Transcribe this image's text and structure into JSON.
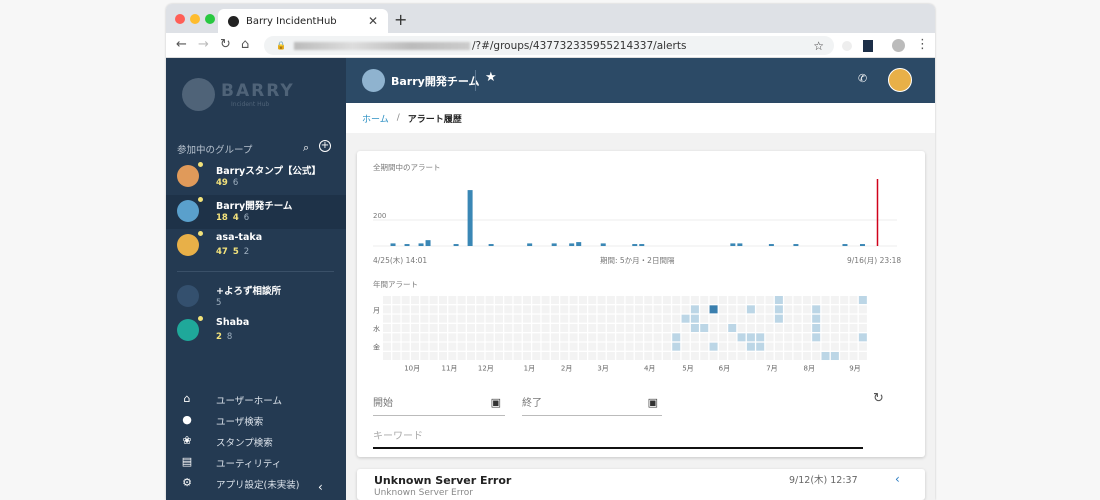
{
  "browser": {
    "tab_title": "Barry IncidentHub",
    "url": "/?#/groups/437732335955214337/alerts"
  },
  "sidebar": {
    "logo": {
      "name": "BARRY",
      "sub": "Incident Hub"
    },
    "groups_title": "参加中のグループ",
    "groups": [
      {
        "name": "Barryスタンプ【公式】",
        "alerts": null,
        "stamps": "49",
        "members": "6",
        "avatar_color": "#e09a5a",
        "new": true,
        "selected": false
      },
      {
        "name": "Barry開発チーム",
        "alerts": "18",
        "stamps": "4",
        "members": "6",
        "avatar_color": "#5aa0cc",
        "new": true,
        "selected": true
      },
      {
        "name": "asa-taka",
        "alerts": "47",
        "stamps": "5",
        "members": "2",
        "avatar_color": "#e8b048",
        "new": true,
        "selected": false
      },
      {
        "name": "+よろず相談所",
        "alerts": null,
        "stamps": null,
        "members": "5",
        "avatar_color": "#34506e",
        "new": false,
        "selected": false
      },
      {
        "name": "Shaba",
        "alerts": null,
        "stamps": "2",
        "members": "8",
        "avatar_color": "#1fa89a",
        "new": true,
        "selected": false
      }
    ],
    "menu": [
      {
        "label": "ユーザーホーム",
        "icon": "home-icon"
      },
      {
        "label": "ユーザ検索",
        "icon": "person-icon"
      },
      {
        "label": "スタンプ検索",
        "icon": "paw-icon"
      },
      {
        "label": "ユーティリティ",
        "icon": "list-icon"
      },
      {
        "label": "アプリ設定(未実装)",
        "icon": "gear-icon"
      }
    ]
  },
  "header": {
    "group_name": "Barry開発チーム"
  },
  "breadcrumb": {
    "home": "ホーム",
    "current": "アラート履歴"
  },
  "chart_data": [
    {
      "type": "bar",
      "title": "全期間中のアラート",
      "y_tick": "200",
      "x_start": "4/25(木) 14:01",
      "x_end": "9/16(月) 23:18",
      "period": "期間: 5か月・2日間隔",
      "x": [
        "5/1",
        "5/5",
        "5/9",
        "5/11",
        "5/19",
        "5/23",
        "5/29",
        "6/9",
        "6/16",
        "6/21",
        "6/23",
        "6/30",
        "7/9",
        "7/11",
        "8/6",
        "8/8",
        "8/17",
        "8/24",
        "9/7",
        "9/12"
      ],
      "values": [
        20,
        15,
        20,
        45,
        15,
        430,
        15,
        20,
        20,
        20,
        30,
        20,
        15,
        15,
        20,
        20,
        15,
        15,
        15,
        15
      ],
      "now_marker": "9/16",
      "bar_color": "#3a87b5",
      "marker_color": "#d0021b",
      "ylim": [
        0,
        520
      ]
    },
    {
      "type": "heatmap",
      "title": "年間アラート",
      "row_labels": [
        "",
        "月",
        "",
        "水",
        "",
        "金",
        ""
      ],
      "month_labels": [
        "10月",
        "11月",
        "12月",
        "1月",
        "2月",
        "3月",
        "4月",
        "5月",
        "6月",
        "7月",
        "8月",
        "9月"
      ],
      "weeks": 52,
      "cells": [
        [
          0,
          42,
          1
        ],
        [
          0,
          51,
          1
        ],
        [
          1,
          33,
          1
        ],
        [
          1,
          35,
          3
        ],
        [
          1,
          39,
          1
        ],
        [
          1,
          42,
          1
        ],
        [
          1,
          46,
          1
        ],
        [
          2,
          32,
          1
        ],
        [
          2,
          33,
          1
        ],
        [
          2,
          42,
          1
        ],
        [
          2,
          46,
          1
        ],
        [
          3,
          33,
          1
        ],
        [
          3,
          34,
          1
        ],
        [
          3,
          37,
          1
        ],
        [
          3,
          46,
          1
        ],
        [
          4,
          31,
          1
        ],
        [
          4,
          38,
          1
        ],
        [
          4,
          39,
          1
        ],
        [
          4,
          40,
          1
        ],
        [
          4,
          46,
          1
        ],
        [
          4,
          51,
          1
        ],
        [
          5,
          31,
          1
        ],
        [
          5,
          35,
          1
        ],
        [
          5,
          39,
          1
        ],
        [
          5,
          40,
          1
        ],
        [
          6,
          47,
          1
        ],
        [
          6,
          48,
          1
        ]
      ],
      "colors": {
        "empty": "#f3f3f3",
        "low": "#bcd6e6",
        "high": "#3a7fae"
      }
    }
  ],
  "filters": {
    "start": "開始",
    "end": "終了",
    "keyword_placeholder": "キーワード"
  },
  "alerts": [
    {
      "title": "Unknown Server Error",
      "time": "9/12(木) 12:37",
      "body": "Unknown Server Error"
    }
  ]
}
